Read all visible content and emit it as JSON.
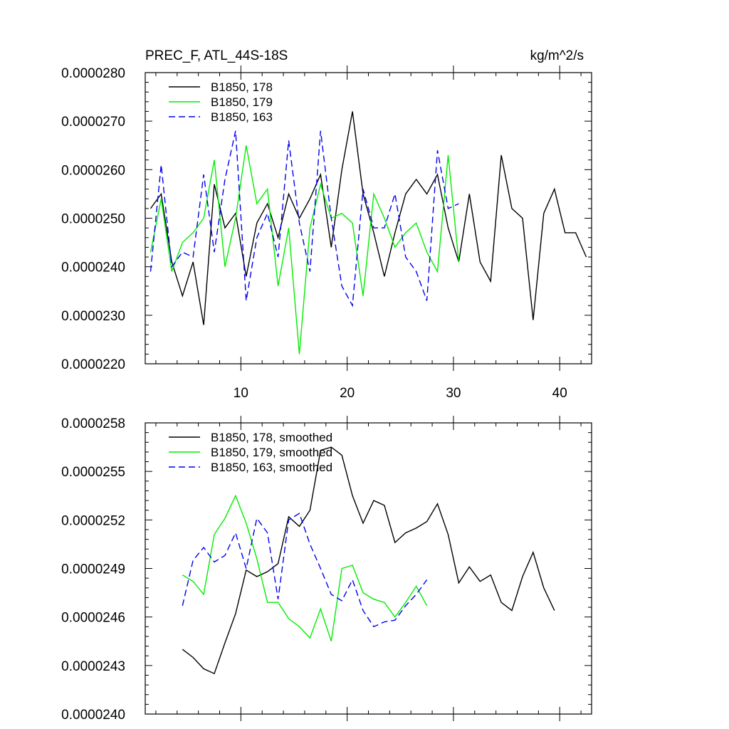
{
  "chart_data": [
    {
      "type": "line",
      "title": "PREC_F, ATL_44S-18S",
      "units": "kg/m^2/s",
      "xlim": [
        1,
        43
      ],
      "ylim": [
        2.2e-05,
        2.8e-05
      ],
      "xticks": [
        10,
        20,
        30,
        40
      ],
      "xtick_labels": [
        "10",
        "20",
        "30",
        "40"
      ],
      "yticks": [
        2.2e-05,
        2.3e-05,
        2.4e-05,
        2.5e-05,
        2.6e-05,
        2.7e-05,
        2.8e-05
      ],
      "ytick_labels": [
        "0.0000220",
        "0.0000230",
        "0.0000240",
        "0.0000250",
        "0.0000260",
        "0.0000270",
        "0.0000280"
      ],
      "legend_position": "top-left",
      "series": [
        {
          "name": "B1850, 178",
          "color": "#000000",
          "dash": "solid",
          "x": [
            1.5,
            2.5,
            3.5,
            4.5,
            5.5,
            6.5,
            7.5,
            8.5,
            9.5,
            10.5,
            11.5,
            12.5,
            13.5,
            14.5,
            15.5,
            16.5,
            17.5,
            18.5,
            19.5,
            20.5,
            21.5,
            22.5,
            23.5,
            24.5,
            25.5,
            26.5,
            27.5,
            28.5,
            29.5,
            30.5,
            31.5,
            32.5,
            33.5,
            34.5,
            35.5,
            36.5,
            37.5,
            38.5,
            39.5,
            40.5,
            41.5,
            42.5
          ],
          "values": [
            2.52e-05,
            2.55e-05,
            2.41e-05,
            2.34e-05,
            2.41e-05,
            2.28e-05,
            2.57e-05,
            2.48e-05,
            2.51e-05,
            2.38e-05,
            2.49e-05,
            2.53e-05,
            2.46e-05,
            2.55e-05,
            2.5e-05,
            2.54e-05,
            2.59e-05,
            2.44e-05,
            2.6e-05,
            2.72e-05,
            2.55e-05,
            2.47e-05,
            2.38e-05,
            2.47e-05,
            2.55e-05,
            2.58e-05,
            2.55e-05,
            2.59e-05,
            2.48e-05,
            2.41e-05,
            2.55e-05,
            2.41e-05,
            2.37e-05,
            2.63e-05,
            2.52e-05,
            2.5e-05,
            2.29e-05,
            2.51e-05,
            2.56e-05,
            2.47e-05,
            2.47e-05,
            2.42e-05
          ]
        },
        {
          "name": "B1850, 179",
          "color": "#00ee00",
          "dash": "solid",
          "x": [
            1.5,
            2.5,
            3.5,
            4.5,
            5.5,
            6.5,
            7.5,
            8.5,
            9.5,
            10.5,
            11.5,
            12.5,
            13.5,
            14.5,
            15.5,
            16.5,
            17.5,
            18.5,
            19.5,
            20.5,
            21.5,
            22.5,
            23.5,
            24.5,
            25.5,
            26.5,
            27.5,
            28.5,
            29.5,
            30.5
          ],
          "values": [
            2.43e-05,
            2.54e-05,
            2.39e-05,
            2.45e-05,
            2.47e-05,
            2.5e-05,
            2.62e-05,
            2.4e-05,
            2.5e-05,
            2.65e-05,
            2.53e-05,
            2.56e-05,
            2.36e-05,
            2.48e-05,
            2.22e-05,
            2.48e-05,
            2.57e-05,
            2.5e-05,
            2.51e-05,
            2.49e-05,
            2.34e-05,
            2.55e-05,
            2.5e-05,
            2.44e-05,
            2.47e-05,
            2.49e-05,
            2.43e-05,
            2.39e-05,
            2.63e-05,
            2.41e-05
          ]
        },
        {
          "name": "B1850, 163",
          "color": "#0000ee",
          "dash": "dashed",
          "x": [
            1.5,
            2.5,
            3.5,
            4.5,
            5.5,
            6.5,
            7.5,
            8.5,
            9.5,
            10.5,
            11.5,
            12.5,
            13.5,
            14.5,
            15.5,
            16.5,
            17.5,
            18.5,
            19.5,
            20.5,
            21.5,
            22.5,
            23.5,
            24.5,
            25.5,
            26.5,
            27.5,
            28.5,
            29.5,
            30.5
          ],
          "values": [
            2.39e-05,
            2.61e-05,
            2.4e-05,
            2.43e-05,
            2.42e-05,
            2.59e-05,
            2.43e-05,
            2.58e-05,
            2.68e-05,
            2.33e-05,
            2.46e-05,
            2.51e-05,
            2.42e-05,
            2.66e-05,
            2.49e-05,
            2.39e-05,
            2.68e-05,
            2.5e-05,
            2.36e-05,
            2.32e-05,
            2.56e-05,
            2.48e-05,
            2.48e-05,
            2.55e-05,
            2.42e-05,
            2.39e-05,
            2.33e-05,
            2.64e-05,
            2.52e-05,
            2.53e-05
          ]
        }
      ]
    },
    {
      "type": "line",
      "xlim": [
        1,
        43
      ],
      "ylim": [
        2.4e-05,
        2.58e-05
      ],
      "xticks": [
        10,
        20,
        30,
        40
      ],
      "yticks": [
        2.4e-05,
        2.43e-05,
        2.46e-05,
        2.49e-05,
        2.52e-05,
        2.55e-05,
        2.58e-05
      ],
      "ytick_labels": [
        "0.0000240",
        "0.0000243",
        "0.0000246",
        "0.0000249",
        "0.0000252",
        "0.0000255",
        "0.0000258"
      ],
      "legend_position": "top-left",
      "series": [
        {
          "name": "B1850, 178, smoothed",
          "color": "#000000",
          "dash": "solid",
          "x": [
            4.5,
            5.5,
            6.5,
            7.5,
            8.5,
            9.5,
            10.5,
            11.5,
            12.5,
            13.5,
            14.5,
            15.5,
            16.5,
            17.5,
            18.5,
            19.5,
            20.5,
            21.5,
            22.5,
            23.5,
            24.5,
            25.5,
            26.5,
            27.5,
            28.5,
            29.5,
            30.5,
            31.5,
            32.5,
            33.5,
            34.5,
            35.5,
            36.5,
            37.5,
            38.5,
            39.5
          ],
          "values": [
            2.44e-05,
            2.435e-05,
            2.428e-05,
            2.425e-05,
            2.444e-05,
            2.462e-05,
            2.489e-05,
            2.485e-05,
            2.488e-05,
            2.493e-05,
            2.522e-05,
            2.516e-05,
            2.526e-05,
            2.563e-05,
            2.565e-05,
            2.56e-05,
            2.535e-05,
            2.518e-05,
            2.532e-05,
            2.529e-05,
            2.506e-05,
            2.512e-05,
            2.515e-05,
            2.519e-05,
            2.53e-05,
            2.511e-05,
            2.481e-05,
            2.491e-05,
            2.482e-05,
            2.486e-05,
            2.469e-05,
            2.464e-05,
            2.485e-05,
            2.5e-05,
            2.478e-05,
            2.464e-05
          ]
        },
        {
          "name": "B1850, 179, smoothed",
          "color": "#00ee00",
          "dash": "solid",
          "x": [
            4.5,
            5.5,
            6.5,
            7.5,
            8.5,
            9.5,
            10.5,
            11.5,
            12.5,
            13.5,
            14.5,
            15.5,
            16.5,
            17.5,
            18.5,
            19.5,
            20.5,
            21.5,
            22.5,
            23.5,
            24.5,
            25.5,
            26.5,
            27.5
          ],
          "values": [
            2.486e-05,
            2.482e-05,
            2.474e-05,
            2.511e-05,
            2.521e-05,
            2.535e-05,
            2.518e-05,
            2.496e-05,
            2.469e-05,
            2.469e-05,
            2.459e-05,
            2.454e-05,
            2.447e-05,
            2.465e-05,
            2.445e-05,
            2.49e-05,
            2.492e-05,
            2.475e-05,
            2.471e-05,
            2.469e-05,
            2.46e-05,
            2.469e-05,
            2.479e-05,
            2.467e-05
          ]
        },
        {
          "name": "B1850, 163, smoothed",
          "color": "#0000ee",
          "dash": "dashed",
          "x": [
            4.5,
            5.5,
            6.5,
            7.5,
            8.5,
            9.5,
            10.5,
            11.5,
            12.5,
            13.5,
            14.5,
            15.5,
            16.5,
            17.5,
            18.5,
            19.5,
            20.5,
            21.5,
            22.5,
            23.5,
            24.5,
            25.5,
            26.5,
            27.5
          ],
          "values": [
            2.467e-05,
            2.495e-05,
            2.503e-05,
            2.494e-05,
            2.498e-05,
            2.512e-05,
            2.49e-05,
            2.521e-05,
            2.512e-05,
            2.471e-05,
            2.52e-05,
            2.524e-05,
            2.505e-05,
            2.49e-05,
            2.474e-05,
            2.47e-05,
            2.483e-05,
            2.464e-05,
            2.454e-05,
            2.457e-05,
            2.458e-05,
            2.467e-05,
            2.474e-05,
            2.483e-05
          ]
        }
      ]
    }
  ]
}
